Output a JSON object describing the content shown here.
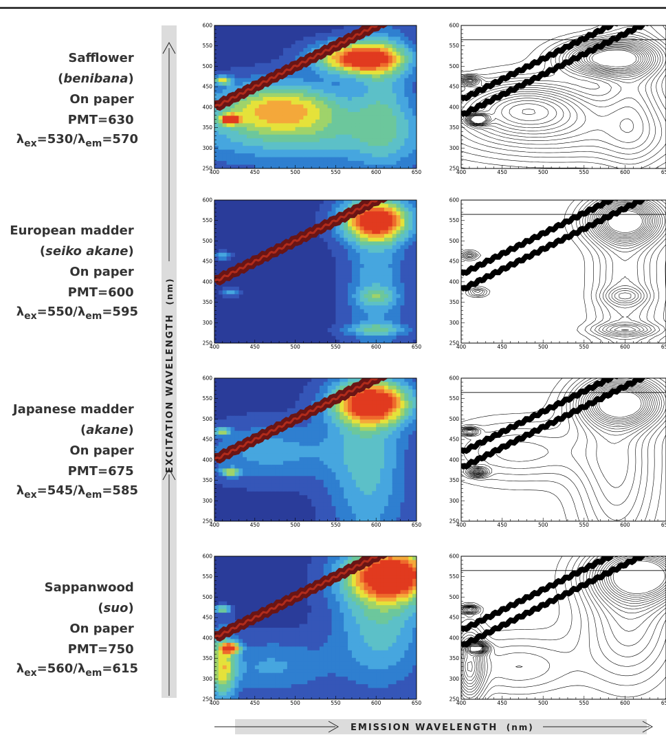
{
  "figure": {
    "y_axis_title": "EXCITATION WAVELENGTH",
    "y_axis_unit": "(nm)",
    "x_axis_title": "EMISSION WAVELENGTH",
    "x_axis_unit": "(nm)"
  },
  "colors": {
    "band_grey": "#dcdcdc",
    "contour_low": "#2f3f9f",
    "contour_mid": "#5ab4a8",
    "contour_high": "#e63a20",
    "scatter_band": "#6a1515"
  },
  "chart_data": [
    {
      "type": "heatmap",
      "name": "Safflower",
      "label": {
        "line1": "Safflower",
        "open": "(",
        "common": "benibana",
        "close": ")",
        "line3": "On paper",
        "line4": "PMT=630",
        "ex_sym": "λ",
        "ex_sub": "ex",
        "ex_val": "=530/",
        "em_sym": "λ",
        "em_sub": "em",
        "em_val": "=570"
      },
      "xlim": [
        400,
        650
      ],
      "ylim": [
        250,
        600
      ],
      "x_ticks": [
        400,
        450,
        500,
        550,
        600,
        650
      ],
      "y_ticks": [
        250,
        300,
        350,
        400,
        450,
        500,
        550,
        600
      ],
      "rayleigh_offset_nm": 0,
      "peaks": [
        {
          "em": 580,
          "ex": 520,
          "sx": 38,
          "sy": 28,
          "a": 1.0
        },
        {
          "em": 480,
          "ex": 400,
          "sx": 55,
          "sy": 45,
          "a": 0.62
        },
        {
          "em": 520,
          "ex": 330,
          "sx": 130,
          "sy": 60,
          "a": 0.35
        },
        {
          "em": 610,
          "ex": 440,
          "sx": 25,
          "sy": 130,
          "a": 0.28
        },
        {
          "em": 420,
          "ex": 370,
          "sx": 8,
          "sy": 8,
          "a": 0.9
        },
        {
          "em": 410,
          "ex": 465,
          "sx": 8,
          "sy": 7,
          "a": 0.55
        }
      ]
    },
    {
      "type": "heatmap",
      "name": "European madder",
      "label": {
        "line1": "European madder",
        "open": "(",
        "common": "seiko akane",
        "close": ")",
        "line3": "On paper",
        "line4": "PMT=600",
        "ex_sym": "λ",
        "ex_sub": "ex",
        "ex_val": "=550/",
        "em_sym": "λ",
        "em_sub": "em",
        "em_val": "=595"
      },
      "xlim": [
        400,
        650
      ],
      "ylim": [
        250,
        600
      ],
      "x_ticks": [
        400,
        450,
        500,
        550,
        600,
        650
      ],
      "y_ticks": [
        250,
        300,
        350,
        400,
        450,
        500,
        550,
        600
      ],
      "rayleigh_offset_nm": 0,
      "peaks": [
        {
          "em": 600,
          "ex": 550,
          "sx": 30,
          "sy": 35,
          "a": 1.0
        },
        {
          "em": 600,
          "ex": 400,
          "sx": 26,
          "sy": 140,
          "a": 0.3
        },
        {
          "em": 600,
          "ex": 365,
          "sx": 18,
          "sy": 14,
          "a": 0.25
        },
        {
          "em": 600,
          "ex": 283,
          "sx": 28,
          "sy": 10,
          "a": 0.3
        },
        {
          "em": 410,
          "ex": 465,
          "sx": 7,
          "sy": 6,
          "a": 0.35
        },
        {
          "em": 420,
          "ex": 375,
          "sx": 8,
          "sy": 7,
          "a": 0.3
        }
      ]
    },
    {
      "type": "heatmap",
      "name": "Japanese madder",
      "label": {
        "line1": "Japanese madder",
        "open": "(",
        "common": "akane",
        "close": ")",
        "line3": "On paper",
        "line4": "PMT=675",
        "ex_sym": "λ",
        "ex_sub": "ex",
        "ex_val": "=545/",
        "em_sym": "λ",
        "em_sub": "em",
        "em_val": "=585"
      },
      "xlim": [
        400,
        650
      ],
      "ylim": [
        250,
        600
      ],
      "x_ticks": [
        400,
        450,
        500,
        550,
        600,
        650
      ],
      "y_ticks": [
        250,
        300,
        350,
        400,
        450,
        500,
        550,
        600
      ],
      "rayleigh_offset_nm": 0,
      "peaks": [
        {
          "em": 595,
          "ex": 540,
          "sx": 34,
          "sy": 38,
          "a": 1.0
        },
        {
          "em": 590,
          "ex": 380,
          "sx": 34,
          "sy": 150,
          "a": 0.36
        },
        {
          "em": 470,
          "ex": 420,
          "sx": 60,
          "sy": 50,
          "a": 0.28
        },
        {
          "em": 410,
          "ex": 470,
          "sx": 7,
          "sy": 6,
          "a": 0.55
        },
        {
          "em": 420,
          "ex": 370,
          "sx": 8,
          "sy": 7,
          "a": 0.6
        }
      ]
    },
    {
      "type": "heatmap",
      "name": "Sappanwood",
      "label": {
        "line1": "Sappanwood",
        "open": "(",
        "common": "suo",
        "close": ")",
        "line3": "On paper",
        "line4": "PMT=750",
        "ex_sym": "λ",
        "ex_sub": "ex",
        "ex_val": "=560/",
        "em_sym": "λ",
        "em_sub": "em",
        "em_val": "=615"
      },
      "xlim": [
        400,
        650
      ],
      "ylim": [
        250,
        600
      ],
      "x_ticks": [
        400,
        450,
        500,
        550,
        600,
        650
      ],
      "y_ticks": [
        250,
        300,
        350,
        400,
        450,
        500,
        550,
        600
      ],
      "rayleigh_offset_nm": 0,
      "peaks": [
        {
          "em": 620,
          "ex": 555,
          "sx": 40,
          "sy": 45,
          "a": 1.0
        },
        {
          "em": 605,
          "ex": 440,
          "sx": 40,
          "sy": 110,
          "a": 0.4
        },
        {
          "em": 410,
          "ex": 330,
          "sx": 12,
          "sy": 60,
          "a": 0.6
        },
        {
          "em": 420,
          "ex": 375,
          "sx": 8,
          "sy": 8,
          "a": 0.8
        },
        {
          "em": 410,
          "ex": 470,
          "sx": 7,
          "sy": 6,
          "a": 0.6
        },
        {
          "em": 470,
          "ex": 330,
          "sx": 50,
          "sy": 50,
          "a": 0.25
        }
      ]
    }
  ]
}
